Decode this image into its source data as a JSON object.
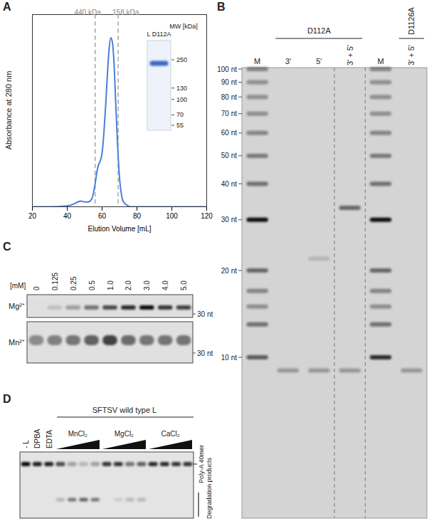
{
  "chart_data": {
    "panel": "A",
    "type": "line",
    "x_label": "Elution Volume [mL]",
    "y_label": "Absorbance at 280 nm",
    "x": [
      20,
      30,
      40,
      44,
      46,
      48,
      50,
      52,
      54,
      55,
      56,
      57,
      58,
      59,
      60,
      61,
      62,
      63,
      64,
      65,
      66,
      67,
      68,
      69,
      70,
      71,
      72,
      74,
      76,
      80,
      100,
      120
    ],
    "values": [
      0,
      0,
      0.5,
      1.5,
      2.5,
      3,
      2.5,
      2.5,
      4,
      7,
      12,
      18,
      22,
      24,
      28,
      38,
      52,
      68,
      82,
      88,
      85,
      72,
      50,
      30,
      15,
      7,
      3,
      1,
      0,
      0,
      0,
      0
    ],
    "color": "#4a7fd9",
    "xlim": [
      20,
      120
    ],
    "xticks": [
      20,
      40,
      60,
      80,
      100,
      120
    ],
    "ylim": [
      0,
      100
    ],
    "yticks": [],
    "tick_labels": "x",
    "annotations": [
      {
        "x": 56,
        "text": "440 kDa"
      },
      {
        "x": 69.2,
        "text": "158 kDa"
      }
    ],
    "inset_gel": {
      "lane": "L D112A",
      "axis_title": "MW [kDa]",
      "markers": [
        250,
        130,
        100,
        70,
        55
      ],
      "bands": [
        {
          "kda": 230,
          "intensity": 1
        }
      ]
    }
  },
  "gels": {
    "B": {
      "panel": "B",
      "type": "gel",
      "size_labels": [
        {
          "value": 100,
          "label": "100 nt"
        },
        {
          "value": 90,
          "label": "90 nt"
        },
        {
          "value": 80,
          "label": "80 nt"
        },
        {
          "value": 70,
          "label": "70 nt"
        },
        {
          "value": 60,
          "label": "60 nt"
        },
        {
          "value": 50,
          "label": "50 nt"
        },
        {
          "value": 40,
          "label": "40 nt"
        },
        {
          "value": 30,
          "label": "30 nt"
        },
        {
          "value": 20,
          "label": "20 nt"
        },
        {
          "value": 10,
          "label": "10 nt"
        }
      ],
      "lanes": [
        {
          "label": "M",
          "bands": [
            {
              "nt": 100,
              "intensity": 0.4
            },
            {
              "nt": 90,
              "intensity": 0.35
            },
            {
              "nt": 80,
              "intensity": 0.35
            },
            {
              "nt": 70,
              "intensity": 0.35
            },
            {
              "nt": 60,
              "intensity": 0.4
            },
            {
              "nt": 50,
              "intensity": 0.45
            },
            {
              "nt": 40,
              "intensity": 0.5
            },
            {
              "nt": 30,
              "intensity": 1
            },
            {
              "nt": 20,
              "intensity": 0.55
            },
            {
              "nt": 17,
              "intensity": 0.4
            },
            {
              "nt": 15,
              "intensity": 0.35
            },
            {
              "nt": 13,
              "intensity": 0.5
            },
            {
              "nt": 10,
              "intensity": 0.6
            }
          ]
        },
        {
          "label": "3'",
          "group": "D112A",
          "bands": [
            {
              "nt": 9,
              "intensity": 0.3
            }
          ]
        },
        {
          "label": "5'",
          "group": "D112A",
          "bands": [
            {
              "nt": 22,
              "intensity": 0.15
            },
            {
              "nt": 9,
              "intensity": 0.3
            }
          ]
        },
        {
          "label": "3' + 5'",
          "group": "D112A",
          "divider_before": true,
          "bands": [
            {
              "nt": 33,
              "intensity": 0.55
            },
            {
              "nt": 9,
              "intensity": 0.3
            }
          ]
        },
        {
          "label": "M",
          "divider_before": true,
          "bands": [
            {
              "nt": 100,
              "intensity": 0.4
            },
            {
              "nt": 90,
              "intensity": 0.35
            },
            {
              "nt": 80,
              "intensity": 0.35
            },
            {
              "nt": 70,
              "intensity": 0.35
            },
            {
              "nt": 60,
              "intensity": 0.4
            },
            {
              "nt": 50,
              "intensity": 0.45
            },
            {
              "nt": 40,
              "intensity": 0.5
            },
            {
              "nt": 30,
              "intensity": 1
            },
            {
              "nt": 20,
              "intensity": 0.55
            },
            {
              "nt": 17,
              "intensity": 0.4
            },
            {
              "nt": 15,
              "intensity": 0.35
            },
            {
              "nt": 13,
              "intensity": 0.5
            },
            {
              "nt": 10,
              "intensity": 0.85
            }
          ]
        },
        {
          "label": "3' + 5'",
          "group": "D1126A",
          "bands": [
            {
              "nt": 9,
              "intensity": 0.3
            }
          ]
        }
      ]
    },
    "C": {
      "panel": "C",
      "type": "gel",
      "unit_label": "[mM]",
      "concentrations": [
        0,
        0.125,
        0.25,
        0.5,
        {
          "value": 1,
          "label": "1.0"
        },
        {
          "value": 2,
          "label": "2.0"
        },
        {
          "value": 3,
          "label": "3.0"
        },
        {
          "value": 4,
          "label": "4.0"
        },
        {
          "value": 5,
          "label": "5.0"
        }
      ],
      "rows": [
        {
          "label": "Mg²⁺",
          "marker_label": "30 nt",
          "intensities": [
            0,
            0.15,
            0.3,
            0.5,
            0.7,
            0.85,
            1,
            0.8,
            0.75
          ]
        },
        {
          "label": "Mn²⁺",
          "marker_label": "30 nt",
          "intensities": [
            0.4,
            0.45,
            0.5,
            0.6,
            0.75,
            0.55,
            0.5,
            0.5,
            0.5
          ]
        }
      ]
    },
    "D": {
      "panel": "D",
      "type": "gel",
      "title": "SFTSV wild type L",
      "band_labels": {
        "full": "Poly-A 40mer",
        "degraded": "Degradation products"
      },
      "lanes": [
        {
          "label": "- L",
          "full": 1,
          "degraded": 0
        },
        {
          "label": "DPBA",
          "full": 0.9,
          "degraded": 0
        },
        {
          "label": "EDTA",
          "full": 0.9,
          "degraded": 0
        },
        {
          "group": "MnCl₂",
          "full": 0.7,
          "degraded": 0.2
        },
        {
          "group": "MnCl₂",
          "full": 0.3,
          "degraded": 0.5
        },
        {
          "group": "MnCl₂",
          "full": 0.2,
          "degraded": 0.6
        },
        {
          "group": "MnCl₂",
          "full": 0.3,
          "degraded": 0.5
        },
        {
          "group": "MgCl₂",
          "full": 0.8,
          "degraded": 0
        },
        {
          "group": "MgCl₂",
          "full": 0.8,
          "degraded": 0.1
        },
        {
          "group": "MgCl₂",
          "full": 0.5,
          "degraded": 0.2
        },
        {
          "group": "MgCl₂",
          "full": 0.6,
          "degraded": 0.2
        },
        {
          "group": "CaCl₂",
          "full": 0.85,
          "degraded": 0
        },
        {
          "group": "CaCl₂",
          "full": 0.85,
          "degraded": 0
        },
        {
          "group": "CaCl₂",
          "full": 0.8,
          "degraded": 0
        },
        {
          "group": "CaCl₂",
          "full": 0.8,
          "degraded": 0
        }
      ]
    }
  }
}
